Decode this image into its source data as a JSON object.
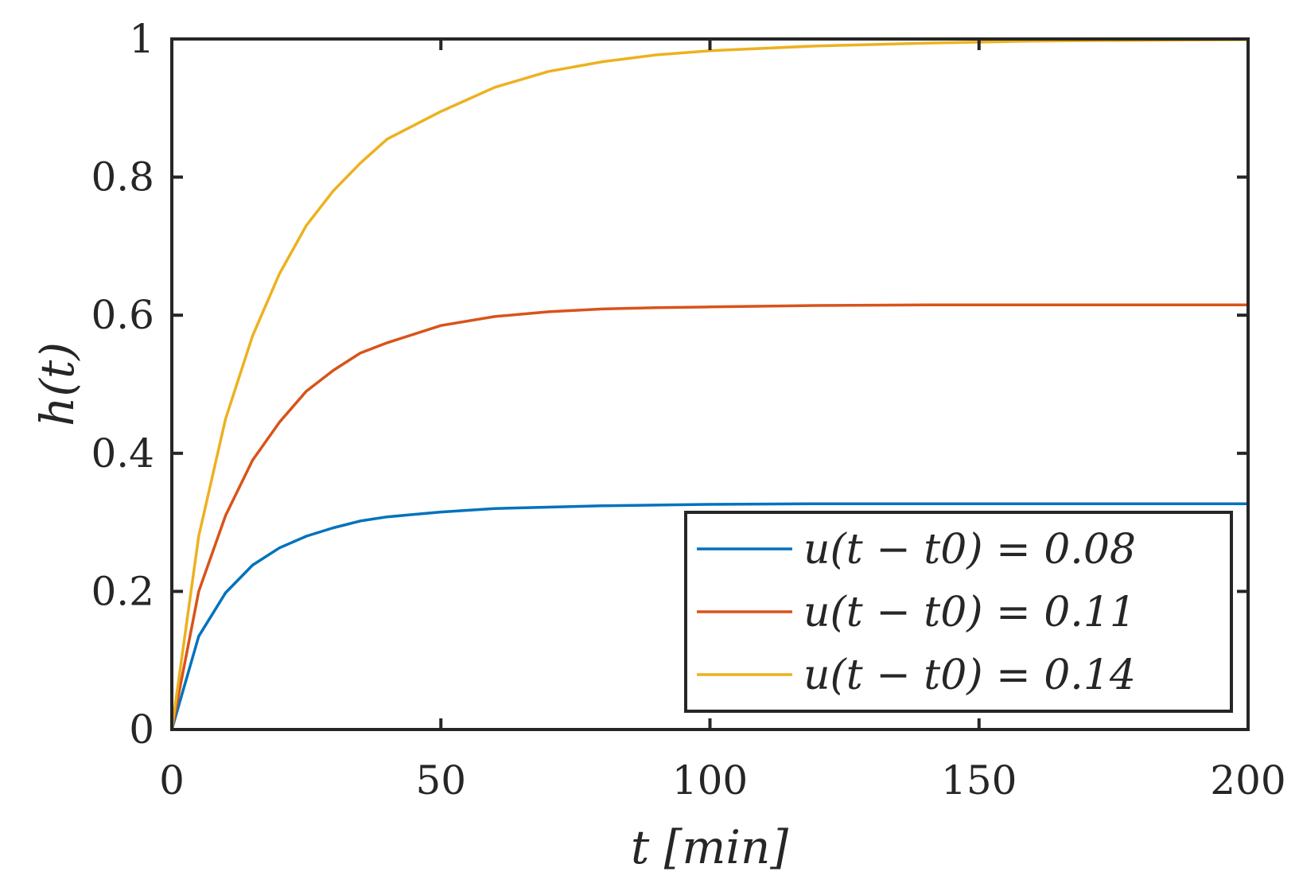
{
  "chart_data": {
    "type": "line",
    "title": "",
    "xlabel": "t [min]",
    "ylabel": "h(t)",
    "xlim": [
      0,
      200
    ],
    "ylim": [
      0,
      1
    ],
    "x_ticks": [
      "0",
      "50",
      "100",
      "150",
      "200"
    ],
    "y_ticks": [
      "0",
      "0.2",
      "0.4",
      "0.6",
      "0.8",
      "1"
    ],
    "grid": false,
    "legend_position": "bottom-right",
    "x": [
      0,
      5,
      10,
      15,
      20,
      25,
      30,
      35,
      40,
      50,
      60,
      70,
      80,
      90,
      100,
      120,
      140,
      160,
      180,
      200
    ],
    "series": [
      {
        "name": "u(t − t0) = 0.08",
        "color": "#0072BD",
        "values": [
          0,
          0.135,
          0.198,
          0.238,
          0.263,
          0.28,
          0.292,
          0.302,
          0.308,
          0.315,
          0.32,
          0.322,
          0.324,
          0.325,
          0.326,
          0.327,
          0.327,
          0.327,
          0.327,
          0.327
        ]
      },
      {
        "name": "u(t − t0) = 0.11",
        "color": "#D95319",
        "values": [
          0,
          0.2,
          0.31,
          0.39,
          0.445,
          0.49,
          0.52,
          0.545,
          0.56,
          0.585,
          0.598,
          0.605,
          0.609,
          0.611,
          0.612,
          0.614,
          0.615,
          0.615,
          0.615,
          0.615
        ]
      },
      {
        "name": "u(t − t0) = 0.14",
        "color": "#EDB120",
        "values": [
          0,
          0.28,
          0.45,
          0.57,
          0.66,
          0.73,
          0.78,
          0.82,
          0.855,
          0.895,
          0.93,
          0.953,
          0.967,
          0.977,
          0.983,
          0.99,
          0.994,
          0.997,
          0.998,
          0.999
        ]
      }
    ]
  }
}
